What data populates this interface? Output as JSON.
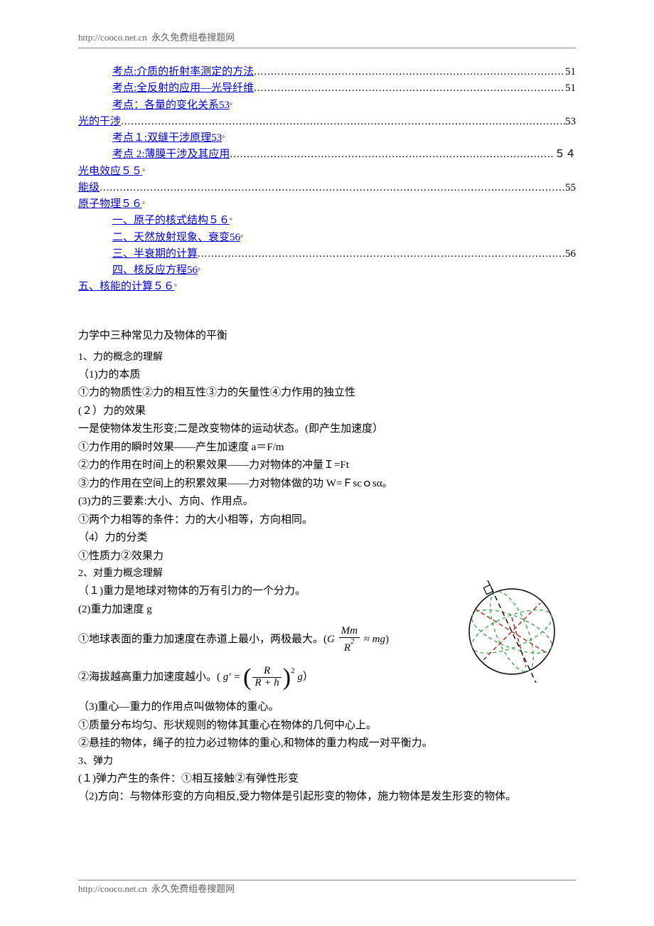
{
  "header": {
    "url": "http://cooco.net.cn",
    "site": "永久免费组卷搜题网"
  },
  "footer": {
    "url": "http://cooco.net.cn",
    "site": "永久免费组卷搜题网"
  },
  "toc": [
    {
      "indent": 1,
      "label": "考点:介质的折射率测定的方法",
      "page": "51",
      "dotted": true
    },
    {
      "indent": 1,
      "label": "考点:全反射的应用—光导纤维",
      "page": "51",
      "dotted": true
    },
    {
      "indent": 1,
      "label": "考点：各量的变化关系",
      "page": "53",
      "dotted": false,
      "trail": "。"
    },
    {
      "indent": 0,
      "label": "光的干涉",
      "page": "53",
      "dotted": true
    },
    {
      "indent": 1,
      "label": "考点１:双缝干涉原理",
      "page": "53",
      "dotted": false,
      "trail": "。"
    },
    {
      "indent": 1,
      "label": "考点 2:薄膜干涉及其应用",
      "page": "５４",
      "dotted": true
    },
    {
      "indent": 0,
      "label": "光电效应",
      "page": "５５",
      "dotted": false,
      "trail": "。"
    },
    {
      "indent": 0,
      "label": "能级",
      "page": "55",
      "dotted": true
    },
    {
      "indent": 0,
      "label": "原子物理",
      "page": "５６",
      "dotted": false,
      "trail": "。"
    },
    {
      "indent": 1,
      "label": "一、原子的核式结构",
      "page": "５６",
      "dotted": false,
      "trail": "。"
    },
    {
      "indent": 1,
      "label": "二、天然放射现象、衰变",
      "page": "56",
      "dotted": false,
      "trail": "。"
    },
    {
      "indent": 1,
      "label": "三、半衰期的计算",
      "page": "56",
      "dotted": true
    },
    {
      "indent": 1,
      "label": "四、核反应方程",
      "page": "56",
      "dotted": false,
      "trail": "。"
    },
    {
      "indent": 0,
      "label": "五、核能的计算",
      "page": "５６",
      "dotted": false,
      "trail": "。"
    }
  ],
  "section_title": "力学中三种常见力及物体的平衡",
  "body": {
    "l1": "1、力的概念的理解",
    "l2": "（1)力的本质",
    "l3": "①力的物质性②力的相互性③力的矢量性④力作用的独立性",
    "l4": "(２）力的效果",
    "l5": "一是使物体发生形变;二是改变物体的运动状态。(即产生加速度）",
    "l6": "①力作用的瞬时效果——产生加速度 a＝F/m",
    "l7": "②力的作用在时间上的积累效果——力对物体的冲量Ｉ=Ft",
    "l8": "③力的作用在空间上的积累效果——力对物体做的功 W=Ｆscｏsα。",
    "l9": "(3)力的三要素:大小、方向、作用点。",
    "l10": "①两个力相等的条件：力的大小相等，方向相同。",
    "l11": "（4）力的分类",
    "l12": "①性质力②效果力",
    "l13": "2、对重力概念理解",
    "l14": "（１)重力是地球对物体的万有引力的一个分力。",
    "l15": "(2)重力加速度 g",
    "l16_pre": "①地球表面的重力加速度在赤道上最小，两极最大。(",
    "l16_G": "G",
    "l16_num": "Mm",
    "l16_den": "R",
    "l16_approx": " ≈ mg",
    "l16_post": ")",
    "l17_pre": "②海拔越高重力加速度越小。( ",
    "l17_gprime": "g′ =",
    "l17_num": "R",
    "l17_den": "R + h",
    "l17_g": " g",
    "l17_post": "）",
    "l18": "（3)重心—重力的作用点叫做物体的重心。",
    "l19": "①质量分布均匀、形状规则的物体其重心在物体的几何中心上。",
    "l20": "②悬挂的物体，绳子的拉力必过物体的重心,和物体的重力构成一对平衡力。",
    "l21": "3、弹力",
    "l22": "(１)弹力产生的条件：①相互接触②有弹性形变",
    "l23": "（2)方向：与物体形变的方向相反,受力物体是引起形变的物体，施力物体是发生形变的物体。"
  },
  "diagram": {
    "circle_stroke": "#000000",
    "green": "#2e9c3a",
    "red": "#b02020",
    "black": "#000000"
  }
}
